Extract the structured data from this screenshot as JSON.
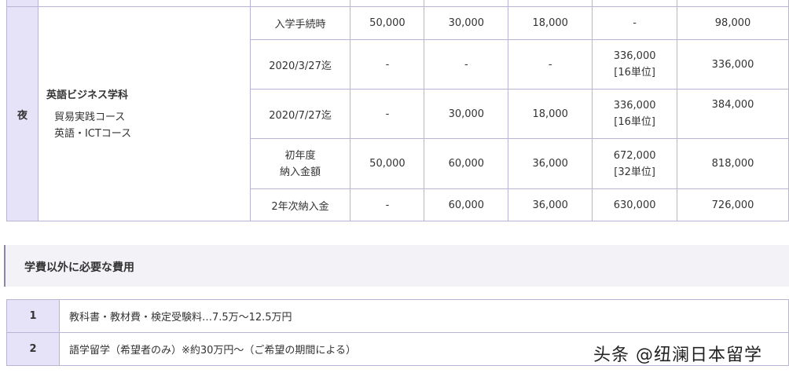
{
  "fee_table": {
    "time_label": "夜",
    "department": "英語ビジネス学科",
    "courses": [
      "貿易実践コース",
      "英語・ICTコース"
    ],
    "rows": [
      {
        "label": "入学手続時",
        "values": [
          "50,000",
          "30,000",
          "18,000",
          "-"
        ],
        "total": "98,000"
      },
      {
        "label": "2020/3/27迄",
        "values": [
          "-",
          "-",
          "-",
          "336,000"
        ],
        "note": "[16単位]",
        "total": "336,000"
      },
      {
        "label": "2020/7/27迄",
        "values": [
          "-",
          "30,000",
          "18,000",
          "336,000"
        ],
        "note": "[16単位]",
        "total": "384,000"
      },
      {
        "label": "初年度",
        "label2": "納入金額",
        "values": [
          "50,000",
          "60,000",
          "36,000",
          "672,000"
        ],
        "note": "[32単位]",
        "total": "818,000"
      },
      {
        "label": "2年次納入金",
        "values": [
          "-",
          "60,000",
          "36,000",
          "630,000"
        ],
        "total": "726,000"
      }
    ]
  },
  "section_title": "学費以外に必要な費用",
  "other_costs": [
    {
      "no": "1",
      "text": "教科書・教材費・検定受験料…7.5万～12.5万円"
    },
    {
      "no": "2",
      "text": "語学留学（希望者のみ）※約30万円～（ご希望の期間による）"
    }
  ],
  "watermark": "头条 @纽澜日本留学"
}
